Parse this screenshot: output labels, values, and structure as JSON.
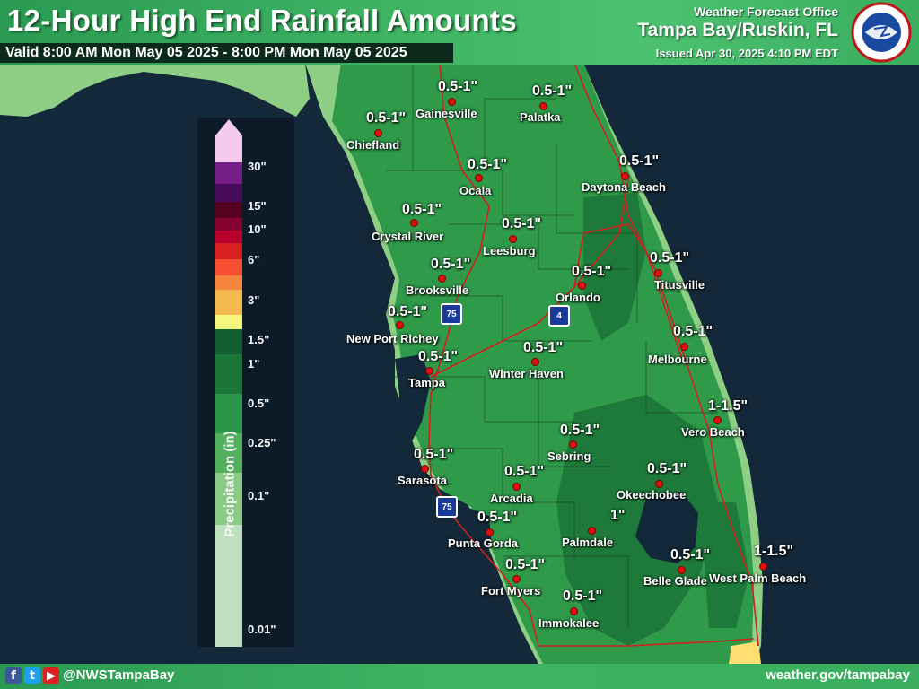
{
  "header": {
    "title": "12-Hour High End Rainfall Amounts",
    "valid": "Valid 8:00 AM Mon May 05 2025 - 8:00 PM Mon May 05 2025",
    "office": "Weather Forecast Office",
    "office_name": "Tampa Bay/Ruskin, FL",
    "issued": "Issued Apr 30, 2025 4:10 PM EDT"
  },
  "footer": {
    "handle": "@NWSTampaBay",
    "website": "weather.gov/tampabay"
  },
  "legend": {
    "title": "Precipitation (in)",
    "labels": [
      "30\"",
      "15\"",
      "10\"",
      "6\"",
      "3\"",
      "1.5\"",
      "1\"",
      "0.5\"",
      "0.25\"",
      "0.1\"",
      "0.01\""
    ],
    "colors": [
      "#ffd2f5",
      "#7a1e8c",
      "#4a0a5e",
      "#5a0020",
      "#8a0030",
      "#c00030",
      "#e02020",
      "#ff5030",
      "#ff8840",
      "#ffc050",
      "#ffff80",
      "#10602e",
      "#1e7a3a",
      "#2f9a4a",
      "#54b560",
      "#8fd08a",
      "#c6e8c4"
    ]
  },
  "cities": [
    {
      "name": "Gainesville",
      "amount": "0.5-1\""
    },
    {
      "name": "Palatka",
      "amount": "0.5-1\""
    },
    {
      "name": "Chiefland",
      "amount": "0.5-1\""
    },
    {
      "name": "Ocala",
      "amount": "0.5-1\""
    },
    {
      "name": "Daytona Beach",
      "amount": "0.5-1\""
    },
    {
      "name": "Crystal River",
      "amount": "0.5-1\""
    },
    {
      "name": "Leesburg",
      "amount": "0.5-1\""
    },
    {
      "name": "Brooksville",
      "amount": "0.5-1\""
    },
    {
      "name": "Orlando",
      "amount": "0.5-1\""
    },
    {
      "name": "Titusville",
      "amount": "0.5-1\""
    },
    {
      "name": "New Port Richey",
      "amount": "0.5-1\""
    },
    {
      "name": "Melbourne",
      "amount": "0.5-1\""
    },
    {
      "name": "Tampa",
      "amount": "0.5-1\""
    },
    {
      "name": "Winter Haven",
      "amount": "0.5-1\""
    },
    {
      "name": "Vero Beach",
      "amount": "1-1.5\""
    },
    {
      "name": "Sebring",
      "amount": "0.5-1\""
    },
    {
      "name": "Sarasota",
      "amount": "0.5-1\""
    },
    {
      "name": "Arcadia",
      "amount": "0.5-1\""
    },
    {
      "name": "Okeechobee",
      "amount": "0.5-1\""
    },
    {
      "name": "Punta Gorda",
      "amount": "0.5-1\""
    },
    {
      "name": "Palmdale",
      "amount": "1\""
    },
    {
      "name": "Belle Glade",
      "amount": "0.5-1\""
    },
    {
      "name": "West Palm Beach",
      "amount": "1-1.5\""
    },
    {
      "name": "Fort Myers",
      "amount": "0.5-1\""
    },
    {
      "name": "Immokalee",
      "amount": "0.5-1\""
    }
  ],
  "shields": [
    "75",
    "4",
    "75"
  ]
}
